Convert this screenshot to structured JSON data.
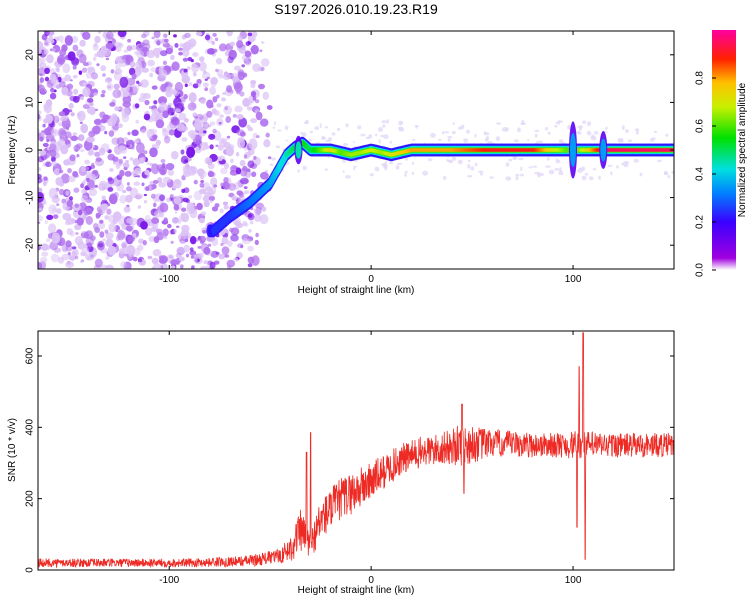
{
  "title": "S197.2026.010.19.23.R19",
  "chart_data": [
    {
      "type": "heatmap",
      "xlabel": "Height of straight line (km)",
      "ylabel": "Frequency (Hz)",
      "xlim": [
        -165,
        150
      ],
      "ylim": [
        -25,
        25
      ],
      "xticks": [
        -100,
        0,
        100
      ],
      "yticks": [
        -20,
        -10,
        0,
        10,
        20
      ],
      "colorbar": {
        "label": "Normalized spectral amplitude",
        "range": [
          0,
          1
        ],
        "ticks": [
          "0.0",
          "0.2",
          "0.4",
          "0.6",
          "0.8"
        ],
        "tick_values": [
          0.0,
          0.2,
          0.4,
          0.6,
          0.8
        ]
      },
      "ridge": {
        "description_points_x": [
          -78,
          -70,
          -60,
          -50,
          -42,
          -38,
          -34,
          -30,
          -25,
          -20,
          -15,
          -10,
          -5,
          0,
          5,
          10,
          15,
          20,
          30,
          40,
          60,
          80,
          100,
          115,
          150
        ],
        "frequency_hz": [
          -17,
          -14,
          -11,
          -7,
          -1,
          0.5,
          1.5,
          0,
          0,
          0,
          -0.5,
          -1,
          -0.5,
          0,
          -0.5,
          -1,
          -0.5,
          0,
          0,
          0,
          0,
          0,
          0,
          0,
          0
        ],
        "amplitude": [
          0.25,
          0.25,
          0.3,
          0.35,
          0.45,
          0.5,
          0.55,
          0.5,
          0.6,
          0.75,
          0.6,
          0.65,
          0.65,
          0.7,
          0.65,
          0.7,
          0.75,
          0.8,
          0.8,
          0.8,
          0.9,
          0.9,
          0.55,
          0.95,
          0.95
        ]
      }
    },
    {
      "type": "line",
      "xlabel": "Height of straight line (km)",
      "ylabel": "SNR (10 * v/v)",
      "xlim": [
        -165,
        150
      ],
      "ylim": [
        0,
        670
      ],
      "xticks": [
        -100,
        0,
        100
      ],
      "yticks": [
        0,
        200,
        400,
        600
      ],
      "series_color": "#ee2a24",
      "envelope": {
        "x": [
          -165,
          -90,
          -62,
          -55,
          -45,
          -40,
          -35,
          -30,
          -25,
          -15,
          -5,
          5,
          15,
          25,
          35,
          45,
          60,
          80,
          95,
          100,
          104,
          108,
          115,
          130,
          150
        ],
        "mean": [
          20,
          20,
          25,
          30,
          40,
          60,
          110,
          70,
          140,
          200,
          230,
          270,
          310,
          330,
          340,
          350,
          355,
          350,
          350,
          350,
          350,
          350,
          350,
          350,
          350
        ],
        "amp": [
          12,
          12,
          15,
          18,
          20,
          40,
          60,
          40,
          60,
          60,
          60,
          50,
          45,
          45,
          45,
          60,
          40,
          35,
          35,
          40,
          40,
          40,
          35,
          35,
          35
        ]
      },
      "spikes": [
        {
          "x": -30,
          "value": 385
        },
        {
          "x": -32,
          "value": 330
        },
        {
          "x": 45,
          "value": 465
        },
        {
          "x": 46,
          "value": 215
        },
        {
          "x": 103,
          "value": 570
        },
        {
          "x": 105,
          "value": 665
        },
        {
          "x": 106,
          "value": 30
        },
        {
          "x": 102,
          "value": 120
        }
      ]
    }
  ]
}
